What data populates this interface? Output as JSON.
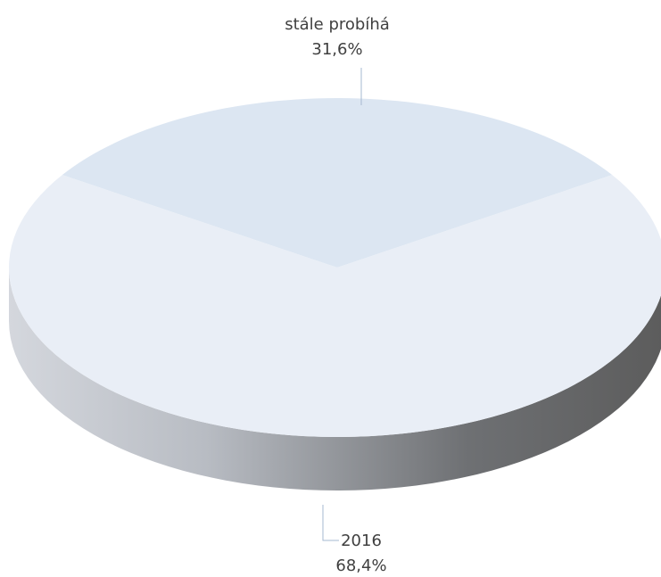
{
  "chart_data": {
    "type": "pie",
    "categories": [
      "stále probíhá",
      "2016"
    ],
    "values": [
      31.6,
      68.4
    ],
    "value_labels": [
      "31,6%",
      "68,4%"
    ],
    "colors": [
      "#dce6f2",
      "#e9eef6"
    ]
  }
}
